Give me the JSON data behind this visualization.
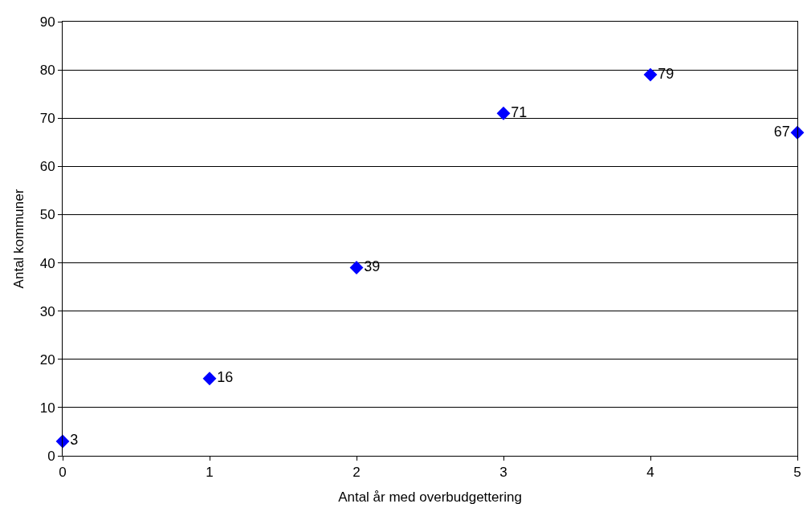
{
  "chart_data": {
    "type": "scatter",
    "xlabel": "Antal år med overbudgettering",
    "ylabel": "Antal kommuner",
    "x": [
      0,
      1,
      2,
      3,
      4,
      5
    ],
    "series": [
      {
        "color": "#0000ff",
        "values": [
          3,
          16,
          39,
          71,
          79,
          67
        ]
      }
    ],
    "marker": "diamond",
    "data_labels": true,
    "grid": "y",
    "xlim": [
      0,
      5
    ],
    "xticks": [
      0,
      1,
      2,
      3,
      4,
      5
    ],
    "ylim": [
      0,
      90
    ],
    "yticks": [
      0,
      10,
      20,
      30,
      40,
      50,
      60,
      70,
      80,
      90
    ]
  }
}
